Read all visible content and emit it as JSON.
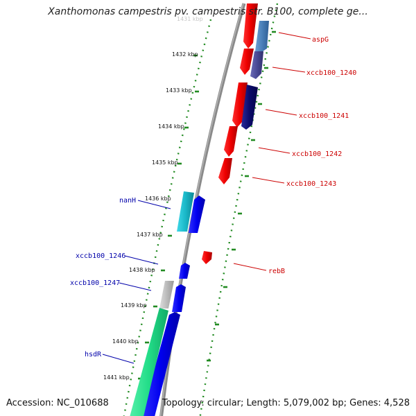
{
  "title": "Xanthomonas campestris pv. campestris str. B100, complete ge...",
  "footer": {
    "accession": "Accession: NC_010688",
    "summary": "Topology: circular; Length: 5,079,002 bp; Genes: 4,528"
  },
  "ruler": {
    "top_partial_label": "1431 kbp",
    "ticks": [
      "1432 kbp",
      "1433 kbp",
      "1434 kbp",
      "1435 kbp",
      "1436 kbp",
      "1437 kbp",
      "1438 kbp",
      "1439 kbp",
      "1440 kbp",
      "1441 kbp"
    ]
  },
  "genes_forward": [
    {
      "label": "aspG",
      "color": "#dd0000"
    },
    {
      "label": "xccb100_1240",
      "color": "#dd0000"
    },
    {
      "label": "xccb100_1241",
      "color": "#dd0000"
    },
    {
      "label": "xccb100_1242",
      "color": "#dd0000"
    },
    {
      "label": "xccb100_1243",
      "color": "#dd0000"
    },
    {
      "label": "rebB",
      "color": "#dd0000"
    }
  ],
  "genes_reverse": [
    {
      "label": "nanH",
      "color": "#0000aa"
    },
    {
      "label": "xccb100_1246",
      "color": "#0000aa"
    },
    {
      "label": "xccb100_1247",
      "color": "#0000aa"
    },
    {
      "label": "hsdR",
      "color": "#0000aa"
    }
  ],
  "colors": {
    "backbone": "#8a8a8a",
    "tick": "#228b22",
    "forward_cds": "#ee0000",
    "reverse_cds": "#0000ee",
    "cog_steelblue": "#4a7fb8",
    "cog_slateblue": "#4a4a96",
    "cog_navy": "#0a0a6a",
    "cog_cyan": "#1ab8c8",
    "cog_grey": "#bbbbbb",
    "cog_green": "#22dd88"
  }
}
